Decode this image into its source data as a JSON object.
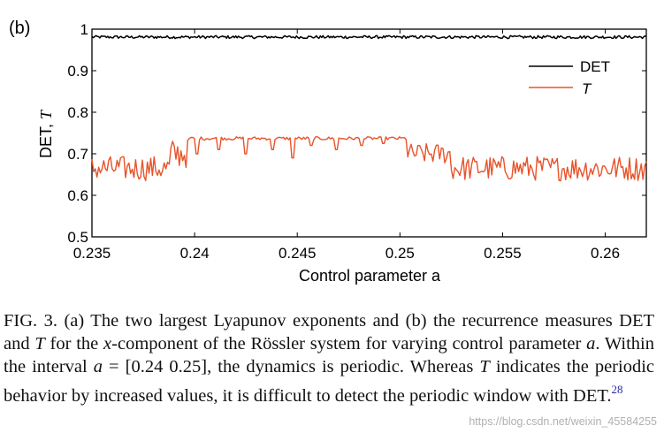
{
  "chart_data": {
    "type": "line",
    "panel_label": "(b)",
    "xlabel": "Control parameter a",
    "ylabel_prefix": "DET, ",
    "ylabel_symbol": "T",
    "xlim": [
      0.235,
      0.262
    ],
    "ylim": [
      0.5,
      1.0
    ],
    "x_ticks": [
      0.235,
      0.24,
      0.245,
      0.25,
      0.255,
      0.26
    ],
    "x_tick_labels": [
      "0.235",
      "0.24",
      "0.245",
      "0.25",
      "0.255",
      "0.26"
    ],
    "y_ticks": [
      0.5,
      0.6,
      0.7,
      0.8,
      0.9,
      1.0
    ],
    "y_tick_labels": [
      "0.5",
      "0.6",
      "0.7",
      "0.8",
      "0.9",
      "1"
    ],
    "legend_position": "top-right",
    "series": [
      {
        "name": "DET",
        "color": "#000000",
        "description": "nearly constant around 0.98 across the whole range",
        "segments": [
          {
            "x_from": 0.235,
            "x_to": 0.262,
            "mean": 0.981,
            "jitter": 0.0035
          }
        ]
      },
      {
        "name": "T",
        "color": "#e8532a",
        "description": "noisy around 0.66 outside the periodic window, about 0.735 inside [0.239 0.2503]",
        "segments": [
          {
            "x_from": 0.235,
            "x_to": 0.2388,
            "mean": 0.665,
            "jitter": 0.03
          },
          {
            "x_from": 0.2388,
            "x_to": 0.2397,
            "mean": 0.7,
            "jitter": 0.035
          },
          {
            "x_from": 0.2397,
            "x_to": 0.2503,
            "mean": 0.737,
            "jitter": 0.004
          },
          {
            "x_from": 0.2503,
            "x_to": 0.2525,
            "mean": 0.7,
            "jitter": 0.025
          },
          {
            "x_from": 0.2525,
            "x_to": 0.262,
            "mean": 0.665,
            "jitter": 0.03
          }
        ],
        "dips": [
          {
            "x": 0.2401,
            "y": 0.7
          },
          {
            "x": 0.2412,
            "y": 0.71
          },
          {
            "x": 0.2425,
            "y": 0.7
          },
          {
            "x": 0.2438,
            "y": 0.71
          },
          {
            "x": 0.2448,
            "y": 0.69
          },
          {
            "x": 0.2457,
            "y": 0.72
          },
          {
            "x": 0.2469,
            "y": 0.71
          },
          {
            "x": 0.2481,
            "y": 0.72
          },
          {
            "x": 0.2492,
            "y": 0.725
          }
        ]
      }
    ]
  },
  "caption": {
    "fig_label": "FIG. 3.",
    "part1": " (a) The two largest Lyapunov exponents and (b) the recurrence measures DET and ",
    "sym1": "T",
    "part2": " for the ",
    "ital_x": "x",
    "part3": "-component of the Rössler system for varying control parameter ",
    "ital_a1": "a",
    "part4": ". Within the interval ",
    "ital_a2": "a",
    "part5": " = [0.24 0.25], the dynamics is periodic. Whereas ",
    "sym2": "T",
    "part6": " indicates the periodic behavior by increased values, it is difficult to detect the periodic window with DET.",
    "ref": "28"
  },
  "watermark": "https://blog.csdn.net/weixin_45584255"
}
